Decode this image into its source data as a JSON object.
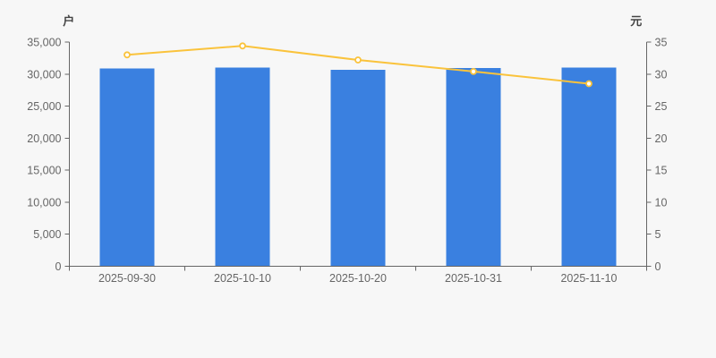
{
  "app": {
    "background_color": "#f7f7f7"
  },
  "chart_data": {
    "type": "combo-bar-line",
    "title": "",
    "legend": "none",
    "grid": false,
    "categories": [
      "2025-09-30",
      "2025-10-10",
      "2025-10-20",
      "2025-10-31",
      "2025-11-10"
    ],
    "series": [
      {
        "name": "households-bars",
        "display_type": "bar",
        "axis": "left",
        "values": [
          30900,
          31000,
          30700,
          30950,
          31000
        ],
        "color": "#3a80e0"
      },
      {
        "name": "price-line",
        "display_type": "line",
        "axis": "right",
        "values": [
          33.0,
          34.4,
          32.2,
          30.4,
          28.5
        ],
        "color": "#fac33c",
        "marker": "hollow-circle",
        "marker_fill": "#ffffff"
      }
    ],
    "left_axis": {
      "unit_label": "户",
      "min": 0,
      "max": 35000,
      "tick_step": 5000,
      "tick_labels": [
        "0",
        "5,000",
        "10,000",
        "15,000",
        "20,000",
        "25,000",
        "30,000",
        "35,000"
      ]
    },
    "right_axis": {
      "unit_label": "元",
      "min": 0,
      "max": 35,
      "tick_step": 5,
      "tick_labels": [
        "0",
        "5",
        "10",
        "15",
        "20",
        "25",
        "30",
        "35"
      ]
    },
    "colors": {
      "axis_line": "#666666",
      "tick_label": "#666666",
      "x_label": "#666666",
      "unit_label": "#444444",
      "background": "#f7f7f7"
    }
  }
}
